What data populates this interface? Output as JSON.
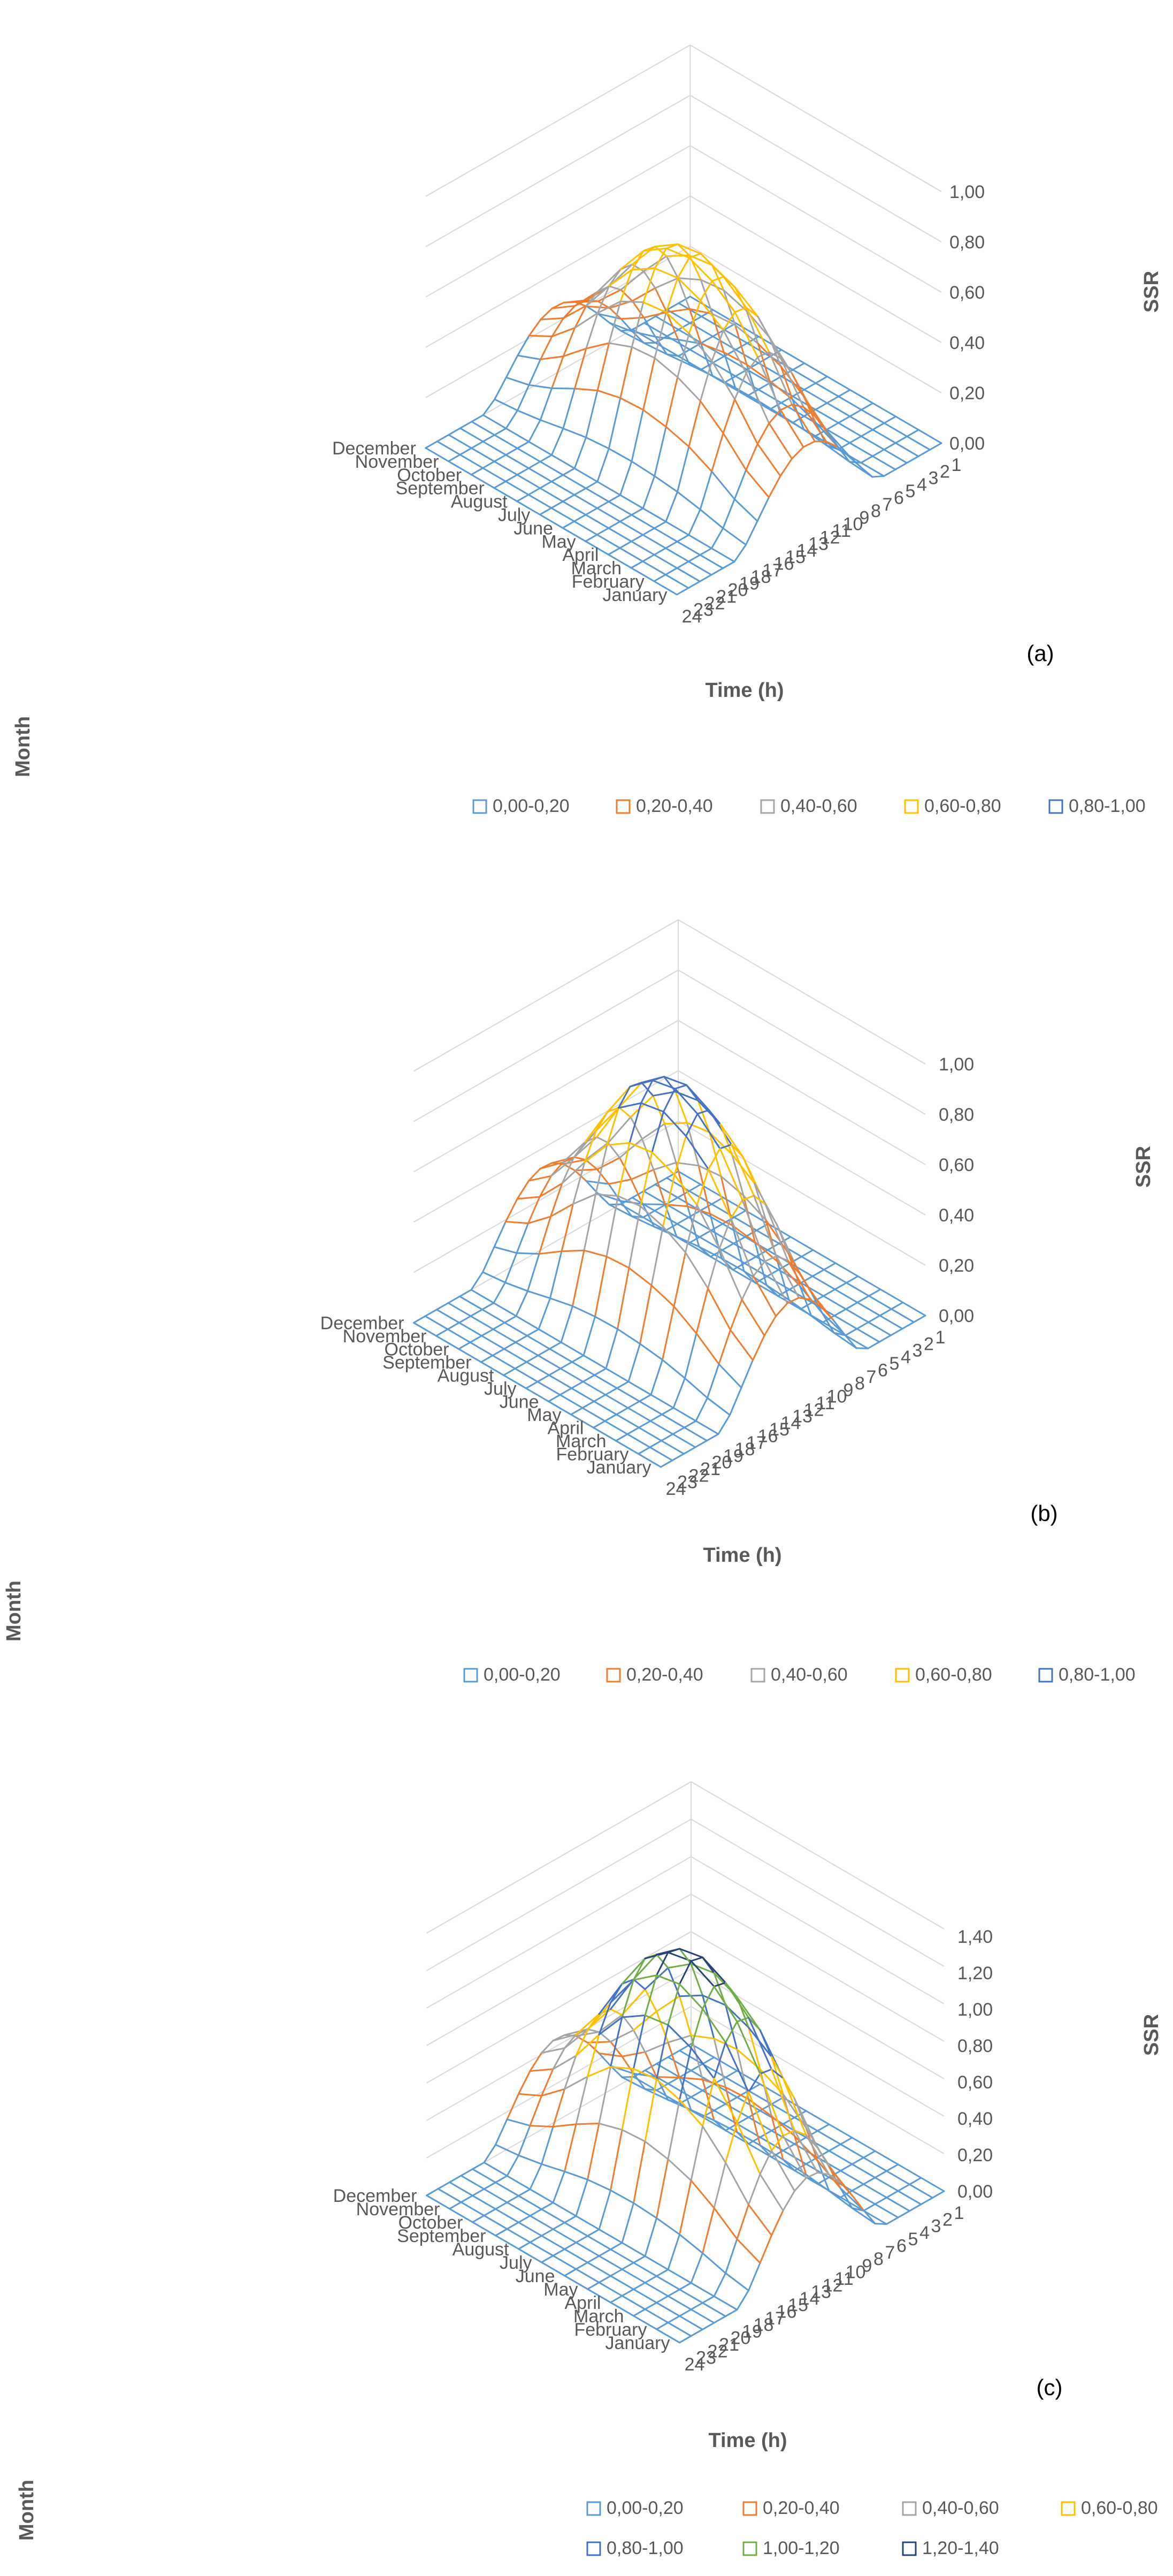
{
  "chart_data": [
    {
      "type": "surface",
      "panel_label": "(a)",
      "title": "",
      "xlabel": "Time (h)",
      "ylabel": "Month",
      "zlabel": "SSR",
      "x": [
        1,
        2,
        3,
        4,
        5,
        6,
        7,
        8,
        9,
        10,
        11,
        12,
        13,
        14,
        15,
        16,
        17,
        18,
        19,
        20,
        21,
        22,
        23,
        24
      ],
      "y": [
        "January",
        "February",
        "March",
        "April",
        "May",
        "June",
        "July",
        "August",
        "September",
        "October",
        "November",
        "December"
      ],
      "zlim": [
        0,
        1.0
      ],
      "z_ticks": [
        "0,00",
        "0,20",
        "0,40",
        "0,60",
        "0,80",
        "1,00"
      ],
      "legend_position": "bottom",
      "legend": [
        {
          "label": "0,00-0,20",
          "color": "#5B9BD5"
        },
        {
          "label": "0,20-0,40",
          "color": "#ED7D31"
        },
        {
          "label": "0,40-0,60",
          "color": "#A5A5A5"
        },
        {
          "label": "0,60-0,80",
          "color": "#FFC000"
        },
        {
          "label": "0,80-1,00",
          "color": "#4472C4"
        }
      ],
      "peak": 0.79,
      "day_start": 6.5,
      "day_end": 18.8,
      "month_amplitude": [
        0.38,
        0.5,
        0.7,
        0.86,
        0.95,
        1.0,
        0.98,
        0.9,
        0.74,
        0.56,
        0.42,
        0.34
      ]
    },
    {
      "type": "surface",
      "panel_label": "(b)",
      "title": "",
      "xlabel": "Time (h)",
      "ylabel": "Month",
      "zlabel": "SSR",
      "x": [
        1,
        2,
        3,
        4,
        5,
        6,
        7,
        8,
        9,
        10,
        11,
        12,
        13,
        14,
        15,
        16,
        17,
        18,
        19,
        20,
        21,
        22,
        23,
        24
      ],
      "y": [
        "January",
        "February",
        "March",
        "April",
        "May",
        "June",
        "July",
        "August",
        "September",
        "October",
        "November",
        "December"
      ],
      "zlim": [
        0,
        1.0
      ],
      "z_ticks": [
        "0,00",
        "0,20",
        "0,40",
        "0,60",
        "0,80",
        "1,00"
      ],
      "legend_position": "bottom",
      "legend": [
        {
          "label": "0,00-0,20",
          "color": "#5B9BD5"
        },
        {
          "label": "0,20-0,40",
          "color": "#ED7D31"
        },
        {
          "label": "0,40-0,60",
          "color": "#A5A5A5"
        },
        {
          "label": "0,60-0,80",
          "color": "#FFC000"
        },
        {
          "label": "0,80-1,00",
          "color": "#4472C4"
        }
      ],
      "peak": 0.96,
      "day_start": 6.5,
      "day_end": 18.8,
      "month_amplitude": [
        0.38,
        0.5,
        0.7,
        0.86,
        0.95,
        1.0,
        0.98,
        0.9,
        0.74,
        0.56,
        0.42,
        0.34
      ]
    },
    {
      "type": "surface",
      "panel_label": "(c)",
      "title": "",
      "xlabel": "Time (h)",
      "ylabel": "Month",
      "zlabel": "SSR",
      "x": [
        1,
        2,
        3,
        4,
        5,
        6,
        7,
        8,
        9,
        10,
        11,
        12,
        13,
        14,
        15,
        16,
        17,
        18,
        19,
        20,
        21,
        22,
        23,
        24
      ],
      "y": [
        "January",
        "February",
        "March",
        "April",
        "May",
        "June",
        "July",
        "August",
        "September",
        "October",
        "November",
        "December"
      ],
      "zlim": [
        0,
        1.4
      ],
      "z_ticks": [
        "0,00",
        "0,20",
        "0,40",
        "0,60",
        "0,80",
        "1,00",
        "1,20",
        "1,40"
      ],
      "legend_position": "bottom",
      "legend": [
        {
          "label": "0,00-0,20",
          "color": "#5B9BD5"
        },
        {
          "label": "0,20-0,40",
          "color": "#ED7D31"
        },
        {
          "label": "0,40-0,60",
          "color": "#A5A5A5"
        },
        {
          "label": "0,60-0,80",
          "color": "#FFC000"
        },
        {
          "label": "0,80-1,00",
          "color": "#4472C4"
        },
        {
          "label": "1,00-1,20",
          "color": "#70AD47"
        },
        {
          "label": "1,20-1,40",
          "color": "#264478"
        }
      ],
      "peak": 1.3,
      "day_start": 6.5,
      "day_end": 18.8,
      "month_amplitude": [
        0.38,
        0.5,
        0.7,
        0.86,
        0.95,
        1.0,
        0.98,
        0.9,
        0.74,
        0.56,
        0.42,
        0.34
      ]
    }
  ]
}
